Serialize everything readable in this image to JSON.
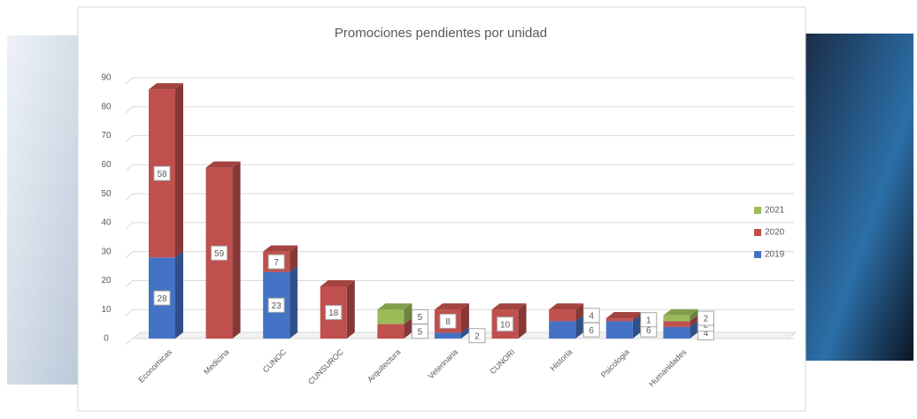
{
  "chart_data": {
    "type": "bar",
    "stacked": true,
    "title": "Promociones pendientes por unidad",
    "categories": [
      "Economicas",
      "Medicina",
      "CUNOC",
      "CUNSUROC",
      "Arquitectura",
      "Veterinaria",
      "CUNORI",
      "Historia",
      "Psicologia",
      "Humanidades"
    ],
    "series": [
      {
        "name": "2019",
        "color": "#4472c4",
        "values": [
          28,
          null,
          23,
          null,
          null,
          2,
          null,
          6,
          6,
          4
        ]
      },
      {
        "name": "2020",
        "color": "#c0504d",
        "values": [
          58,
          59,
          7,
          18,
          5,
          8,
          10,
          4,
          1,
          2
        ]
      },
      {
        "name": "2021",
        "color": "#9bbb59",
        "values": [
          null,
          null,
          null,
          null,
          5,
          null,
          null,
          null,
          null,
          2
        ]
      }
    ],
    "ylim": [
      0,
      90
    ],
    "yticks": [
      0,
      10,
      20,
      30,
      40,
      50,
      60,
      70,
      80,
      90
    ],
    "grid": true,
    "legend": "right"
  }
}
